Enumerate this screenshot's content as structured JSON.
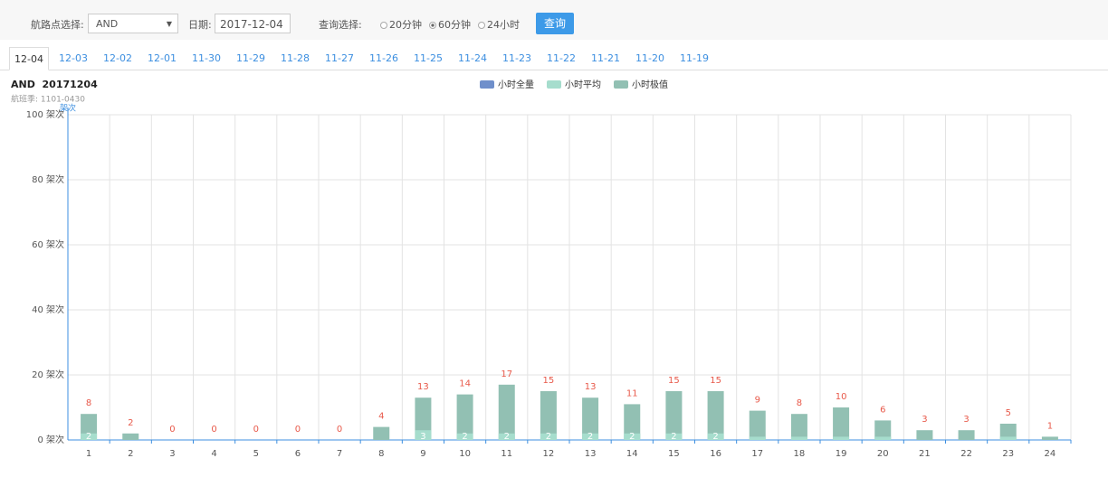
{
  "toolbar": {
    "waypoint_label": "航路点选择:",
    "waypoint_value": "AND",
    "date_label": "日期:",
    "date_value": "2017-12-04",
    "query_label": "查询选择:",
    "options": [
      "20分钟",
      "60分钟",
      "24小时"
    ],
    "selected_index": 1,
    "button": "查询"
  },
  "tabs": [
    "12-04",
    "12-03",
    "12-02",
    "12-01",
    "11-30",
    "11-29",
    "11-28",
    "11-27",
    "11-26",
    "11-25",
    "11-24",
    "11-23",
    "11-22",
    "11-21",
    "11-20",
    "11-19"
  ],
  "active_tab_index": 0,
  "chart_data": {
    "type": "bar",
    "title": "AND  20171204",
    "subtitle": "航班季: 1101-0430",
    "y_label": "架次",
    "categories": [
      "1",
      "2",
      "3",
      "4",
      "5",
      "6",
      "7",
      "8",
      "9",
      "10",
      "11",
      "12",
      "13",
      "14",
      "15",
      "16",
      "17",
      "18",
      "19",
      "20",
      "21",
      "22",
      "23",
      "24"
    ],
    "series": [
      {
        "name": "小时全量",
        "color": "#6f8fcb",
        "values": [
          null,
          null,
          null,
          null,
          null,
          null,
          null,
          null,
          null,
          null,
          null,
          null,
          null,
          null,
          null,
          null,
          null,
          null,
          null,
          null,
          null,
          null,
          null,
          null
        ]
      },
      {
        "name": "小时平均",
        "color": "#a6ddcd",
        "values": [
          2,
          0,
          0,
          0,
          0,
          0,
          0,
          0,
          3,
          2,
          2,
          2,
          2,
          2,
          2,
          2,
          1,
          1,
          1,
          1,
          0,
          0,
          1,
          0
        ],
        "value_labels": [
          "2",
          null,
          null,
          null,
          null,
          null,
          null,
          null,
          "3",
          "2",
          "2",
          "2",
          "2",
          "2",
          "2",
          "2",
          null,
          null,
          null,
          null,
          null,
          null,
          null,
          null
        ]
      },
      {
        "name": "小时极值",
        "color": "#92c0b3",
        "values": [
          8,
          2,
          0,
          0,
          0,
          0,
          0,
          4,
          13,
          14,
          17,
          15,
          13,
          11,
          15,
          15,
          9,
          8,
          10,
          6,
          3,
          3,
          5,
          1
        ]
      }
    ],
    "ylim": [
      0,
      100
    ],
    "yticks": [
      {
        "value": 0,
        "label": "0 架次"
      },
      {
        "value": 20,
        "label": "20 架次"
      },
      {
        "value": 40,
        "label": "40 架次"
      },
      {
        "value": 60,
        "label": "60 架次"
      },
      {
        "value": 80,
        "label": "80 架次"
      },
      {
        "value": 100,
        "label": "100 架次"
      }
    ],
    "grid": true
  }
}
